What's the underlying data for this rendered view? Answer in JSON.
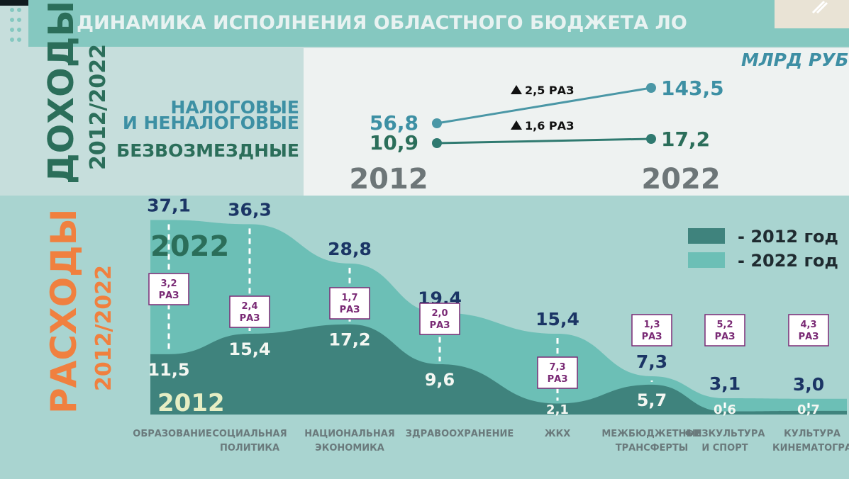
{
  "title": "ДИНАМИКА ИСПОЛНЕНИЯ ОБЛАСТНОГО БЮДЖЕТА  ЛО",
  "unit": "МЛРД РУБ.",
  "colors": {
    "header_bar": "#85c8c0",
    "header_text": "#e8f2f1",
    "bg_upper": "#c6dedc",
    "income_panel": "#eef2f1",
    "bg_lower": "#a9d4d0",
    "area_2022": "#6cbfb6",
    "area_2012": "#3f837d",
    "series_taxes": "#4a97a6",
    "series_free": "#2f7a70",
    "dark_navy": "#1b3565",
    "orange": "#f0803f",
    "dark_green": "#2b6e5a",
    "purple": "#7a2a75"
  },
  "income": {
    "section_title": "ДОХОДЫ",
    "section_years": "2012/2022",
    "year_start": "2012",
    "year_end": "2022",
    "rows": [
      {
        "label_line1": "НАЛОГОВЫЕ",
        "label_line2": "И НЕНАЛОГОВЫЕ",
        "start_label": "56,8",
        "end_label": "143,5",
        "growth_label": "2,5 РАЗ"
      },
      {
        "label_line1": "БЕЗВОЗМЕЗДНЫЕ",
        "label_line2": "",
        "start_label": "10,9",
        "end_label": "17,2",
        "growth_label": "1,6 РАЗ"
      }
    ]
  },
  "expenses": {
    "section_title": "РАСХОДЫ",
    "section_years": "2012/2022",
    "area_label_2022": "2022",
    "area_label_2012": "2012"
  },
  "legend": [
    {
      "label": "- 2012 год",
      "color": "#3f837d"
    },
    {
      "label": "- 2022 год",
      "color": "#6cbfb6"
    }
  ],
  "chart_data": [
    {
      "type": "line",
      "x": [
        "2012",
        "2022"
      ],
      "series": [
        {
          "name": "НАЛОГОВЫЕ И НЕНАЛОГОВЫЕ",
          "values": [
            56.8,
            143.5
          ]
        },
        {
          "name": "БЕЗВОЗМЕЗДНЫЕ",
          "values": [
            10.9,
            17.2
          ]
        }
      ]
    },
    {
      "type": "area",
      "categories": [
        [
          "ОБРАЗОВАНИЕ"
        ],
        [
          "СОЦИАЛЬНАЯ",
          "ПОЛИТИКА"
        ],
        [
          "НАЦИОНАЛЬНАЯ",
          "ЭКОНОМИКА"
        ],
        [
          "ЗДРАВООХРАНЕНИЕ"
        ],
        [
          "ЖКХ"
        ],
        [
          "МЕЖБЮДЖЕТНЫЕ",
          "ТРАНСФЕРТЫ"
        ],
        [
          "ФИЗКУЛЬТУРА",
          "И СПОРТ"
        ],
        [
          "КУЛЬТУРА",
          "КИНЕМАТОГРА"
        ]
      ],
      "series": [
        {
          "name": "- 2012 год",
          "values": [
            11.5,
            15.4,
            17.2,
            9.6,
            2.1,
            5.7,
            0.6,
            0.7
          ],
          "labels": [
            "11,5",
            "15,4",
            "17,2",
            "9,6",
            "2,1",
            "5,7",
            "0,6",
            "0,7"
          ]
        },
        {
          "name": "- 2022 год",
          "values": [
            37.1,
            36.3,
            28.8,
            19.4,
            15.4,
            7.3,
            3.1,
            3.0
          ],
          "labels": [
            "37,1",
            "36,3",
            "28,8",
            "19,4",
            "15,4",
            "7,3",
            "3,1",
            "3,0"
          ]
        }
      ],
      "growth": [
        [
          "3,2",
          "РАЗ"
        ],
        [
          "2,4",
          "РАЗ"
        ],
        [
          "1,7",
          "РАЗ"
        ],
        [
          "2,0",
          "РАЗ"
        ],
        [
          "7,3",
          "РАЗ"
        ],
        [
          "1,3",
          "РАЗ"
        ],
        [
          "5,2",
          "РАЗ"
        ],
        [
          "4,3",
          "РАЗ"
        ]
      ]
    }
  ]
}
